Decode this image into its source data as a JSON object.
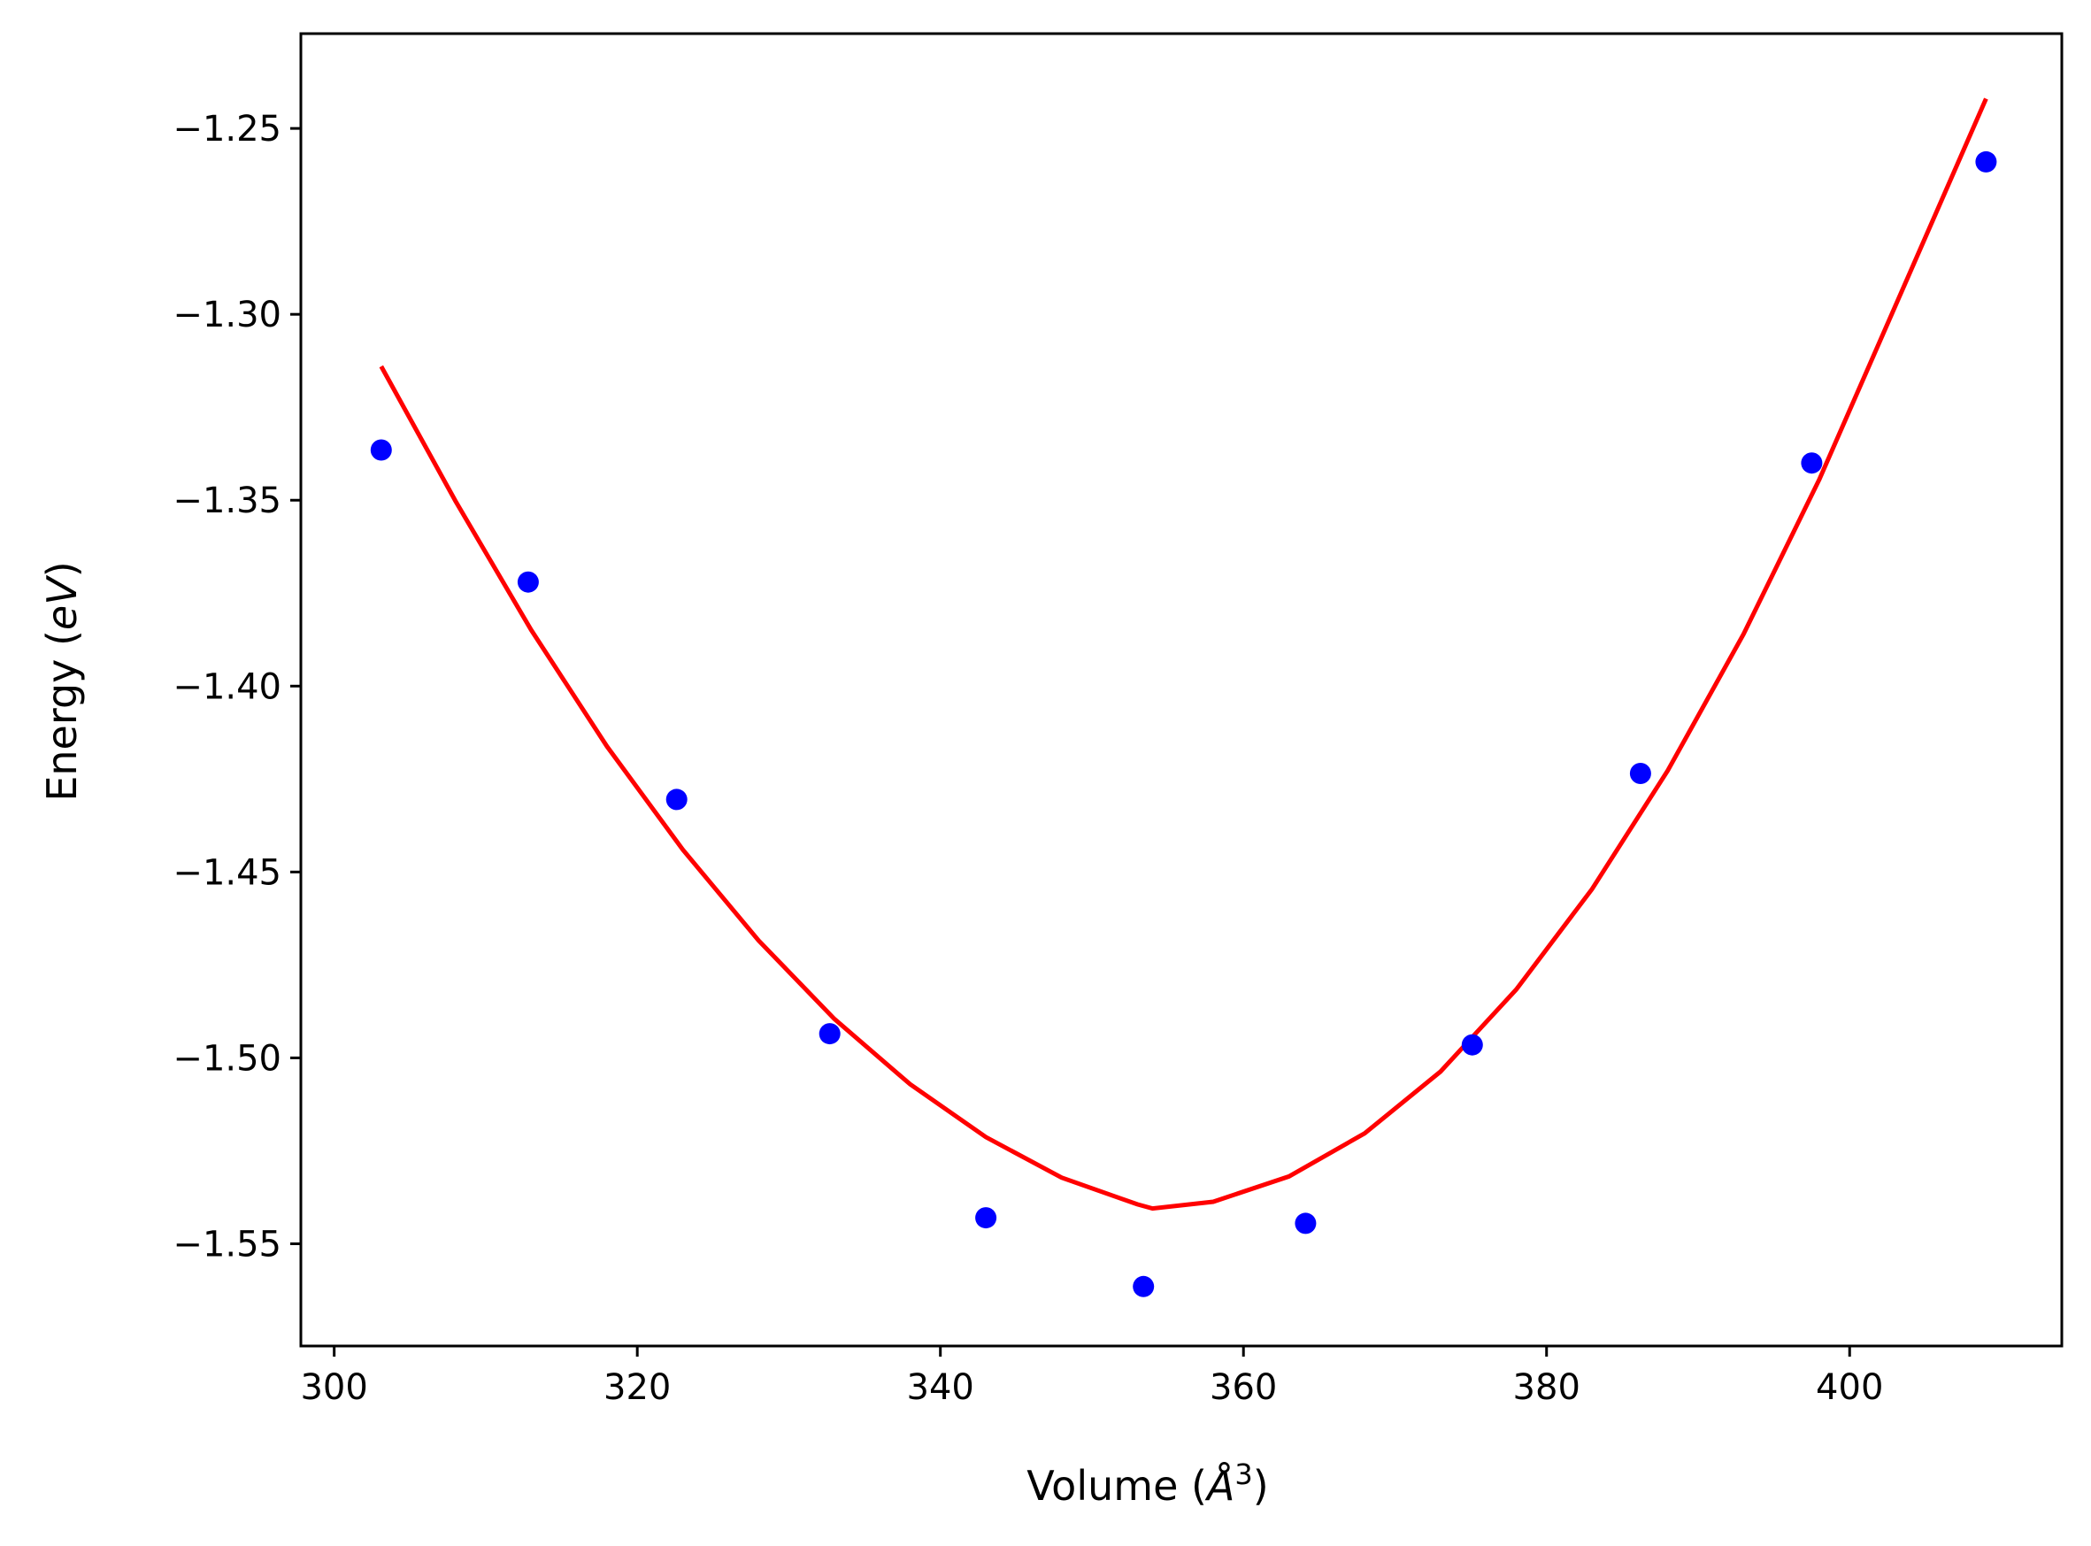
{
  "chart_data": {
    "type": "scatter",
    "title": "",
    "xlabel": {
      "prefix": "Volume (",
      "symbol": "Å",
      "superscript": "3",
      "suffix": ")"
    },
    "ylabel": {
      "prefix": "Energy (",
      "symbol": "eV",
      "suffix": ")"
    },
    "xlim": [
      297.8,
      414.0
    ],
    "ylim": [
      -1.5775,
      -1.2245
    ],
    "x_ticks": [
      300,
      320,
      340,
      360,
      380,
      400
    ],
    "x_tick_labels": [
      "300",
      "320",
      "340",
      "360",
      "380",
      "400"
    ],
    "y_ticks": [
      -1.25,
      -1.3,
      -1.35,
      -1.4,
      -1.45,
      -1.5,
      -1.55
    ],
    "y_tick_labels": [
      "−1.25",
      "−1.30",
      "−1.35",
      "−1.40",
      "−1.45",
      "−1.50",
      "−1.55"
    ],
    "grid": false,
    "legend": "none",
    "series": [
      {
        "kind": "scatter",
        "color": "#0000ff",
        "x": [
          303.1,
          312.8,
          322.6,
          332.7,
          343.0,
          353.4,
          364.1,
          375.1,
          386.2,
          397.5,
          409.0
        ],
        "y": [
          -1.3365,
          -1.372,
          -1.4305,
          -1.4935,
          -1.543,
          -1.5615,
          -1.5445,
          -1.4965,
          -1.4235,
          -1.34,
          -1.259
        ]
      },
      {
        "kind": "fit-line",
        "color": "#ff0000",
        "x": [
          303.1,
          308.0,
          313.0,
          318.0,
          323.0,
          328.0,
          333.0,
          338.0,
          343.0,
          348.0,
          353.0,
          354.0,
          358.0,
          363.0,
          368.0,
          373.0,
          378.0,
          383.0,
          388.0,
          393.0,
          398.0,
          403.0,
          409.0
        ],
        "y": [
          -1.314,
          -1.3502,
          -1.3849,
          -1.4162,
          -1.444,
          -1.4684,
          -1.4895,
          -1.5071,
          -1.5213,
          -1.5322,
          -1.5394,
          -1.5405,
          -1.5387,
          -1.5319,
          -1.5203,
          -1.5037,
          -1.4816,
          -1.4546,
          -1.4227,
          -1.386,
          -1.3444,
          -1.2979,
          -1.242
        ]
      }
    ]
  }
}
